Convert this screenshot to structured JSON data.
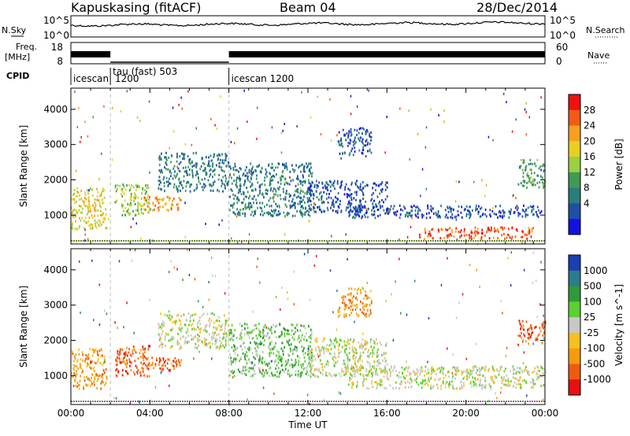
{
  "header": {
    "station": "Kapuskasing (fitACF)",
    "beam": "Beam 04",
    "date": "28/Dec/2014"
  },
  "panels": {
    "noise": {
      "left_label": "N.Sky",
      "right_label": "N.Search",
      "left_ticks": [
        "10^5",
        "10^0"
      ],
      "right_ticks": [
        "10^5",
        "10^0"
      ]
    },
    "freq": {
      "left_label_1": "Freq.",
      "left_label_2": "[MHz]",
      "right_label": "Nave",
      "left_ticks": [
        "18",
        "8"
      ],
      "right_ticks": [
        "60",
        "0"
      ]
    },
    "cpid": {
      "label": "CPID",
      "modes": [
        {
          "label": "icescan",
          "label2": "1200",
          "start_hour": 0
        },
        {
          "label": "tau (fast) 503",
          "label2": "",
          "start_hour": 2
        },
        {
          "label": "icescan 1200",
          "label2": "",
          "start_hour": 8
        }
      ]
    }
  },
  "chart_data": [
    {
      "type": "heatmap",
      "name": "power",
      "ylabel": "Slant Range [km]",
      "xlabel": "",
      "xlim": [
        0,
        24
      ],
      "ylim": [
        180,
        4600
      ],
      "yticks": [
        1000,
        2000,
        3000,
        4000
      ],
      "colorbar": {
        "label": "Power [dB]",
        "ticks": [
          "28",
          "24",
          "20",
          "16",
          "12",
          "8",
          "4"
        ],
        "colors": [
          "#f01010",
          "#f35a14",
          "#f6a01e",
          "#e8d020",
          "#9bd040",
          "#3f9a55",
          "#2a7d7a",
          "#1f4fa5",
          "#1410e0"
        ]
      },
      "echo_regions": [
        {
          "t0": 0.0,
          "t1": 1.8,
          "r0": 620,
          "r1": 1800,
          "level": 3
        },
        {
          "t0": 2.2,
          "t1": 4.0,
          "r0": 1000,
          "r1": 1900,
          "level": 4
        },
        {
          "t0": 3.6,
          "t1": 5.6,
          "r0": 1150,
          "r1": 1550,
          "level": 2
        },
        {
          "t0": 4.4,
          "t1": 8.0,
          "r0": 1700,
          "r1": 2800,
          "level": 6
        },
        {
          "t0": 8.0,
          "t1": 12.2,
          "r0": 1000,
          "r1": 2500,
          "level": 6
        },
        {
          "t0": 12.0,
          "t1": 16.0,
          "r0": 1100,
          "r1": 2000,
          "level": 7
        },
        {
          "t0": 13.5,
          "t1": 15.2,
          "r0": 2700,
          "r1": 3500,
          "level": 7
        },
        {
          "t0": 14.0,
          "t1": 24.0,
          "r0": 950,
          "r1": 1300,
          "level": 7
        },
        {
          "t0": 17.6,
          "t1": 23.4,
          "r0": 350,
          "r1": 680,
          "level": 1
        },
        {
          "t0": 22.6,
          "t1": 24.0,
          "r0": 1800,
          "r1": 2600,
          "level": 5
        }
      ]
    },
    {
      "type": "heatmap",
      "name": "velocity",
      "ylabel": "Slant Range [km]",
      "xlabel": "Time UT",
      "xlim": [
        0,
        24
      ],
      "ylim": [
        180,
        4600
      ],
      "yticks": [
        1000,
        2000,
        3000,
        4000
      ],
      "xticks": [
        "00:00",
        "04:00",
        "08:00",
        "12:00",
        "16:00",
        "20:00",
        "00:00"
      ],
      "colorbar": {
        "label": "Velocity [m s^-1]",
        "ticks": [
          "1000",
          "500",
          "100",
          "25",
          "-25",
          "-100",
          "-500",
          "-1000"
        ],
        "colors": [
          "#1a3fb0",
          "#2a7d8a",
          "#2f9a3a",
          "#5cd030",
          "#c8c8c8",
          "#f6c020",
          "#f69a10",
          "#f05a10",
          "#e81010"
        ]
      },
      "echo_regions": [
        {
          "t0": 0.0,
          "t1": 1.8,
          "r0": 650,
          "r1": 1800,
          "level": 6
        },
        {
          "t0": 2.2,
          "t1": 4.0,
          "r0": 1000,
          "r1": 1900,
          "level": 7
        },
        {
          "t0": 3.6,
          "t1": 5.6,
          "r0": 1150,
          "r1": 1550,
          "level": 7
        },
        {
          "t0": 4.4,
          "t1": 8.0,
          "r0": 1800,
          "r1": 2800,
          "level": 4
        },
        {
          "t0": 8.0,
          "t1": 12.2,
          "r0": 1000,
          "r1": 2500,
          "level": 3
        },
        {
          "t0": 12.0,
          "t1": 16.0,
          "r0": 1000,
          "r1": 2100,
          "level": 4
        },
        {
          "t0": 13.5,
          "t1": 15.2,
          "r0": 2700,
          "r1": 3500,
          "level": 6
        },
        {
          "t0": 14.0,
          "t1": 24.0,
          "r0": 650,
          "r1": 1300,
          "level": 4
        },
        {
          "t0": 22.6,
          "t1": 24.0,
          "r0": 1900,
          "r1": 2600,
          "level": 7
        }
      ]
    }
  ]
}
